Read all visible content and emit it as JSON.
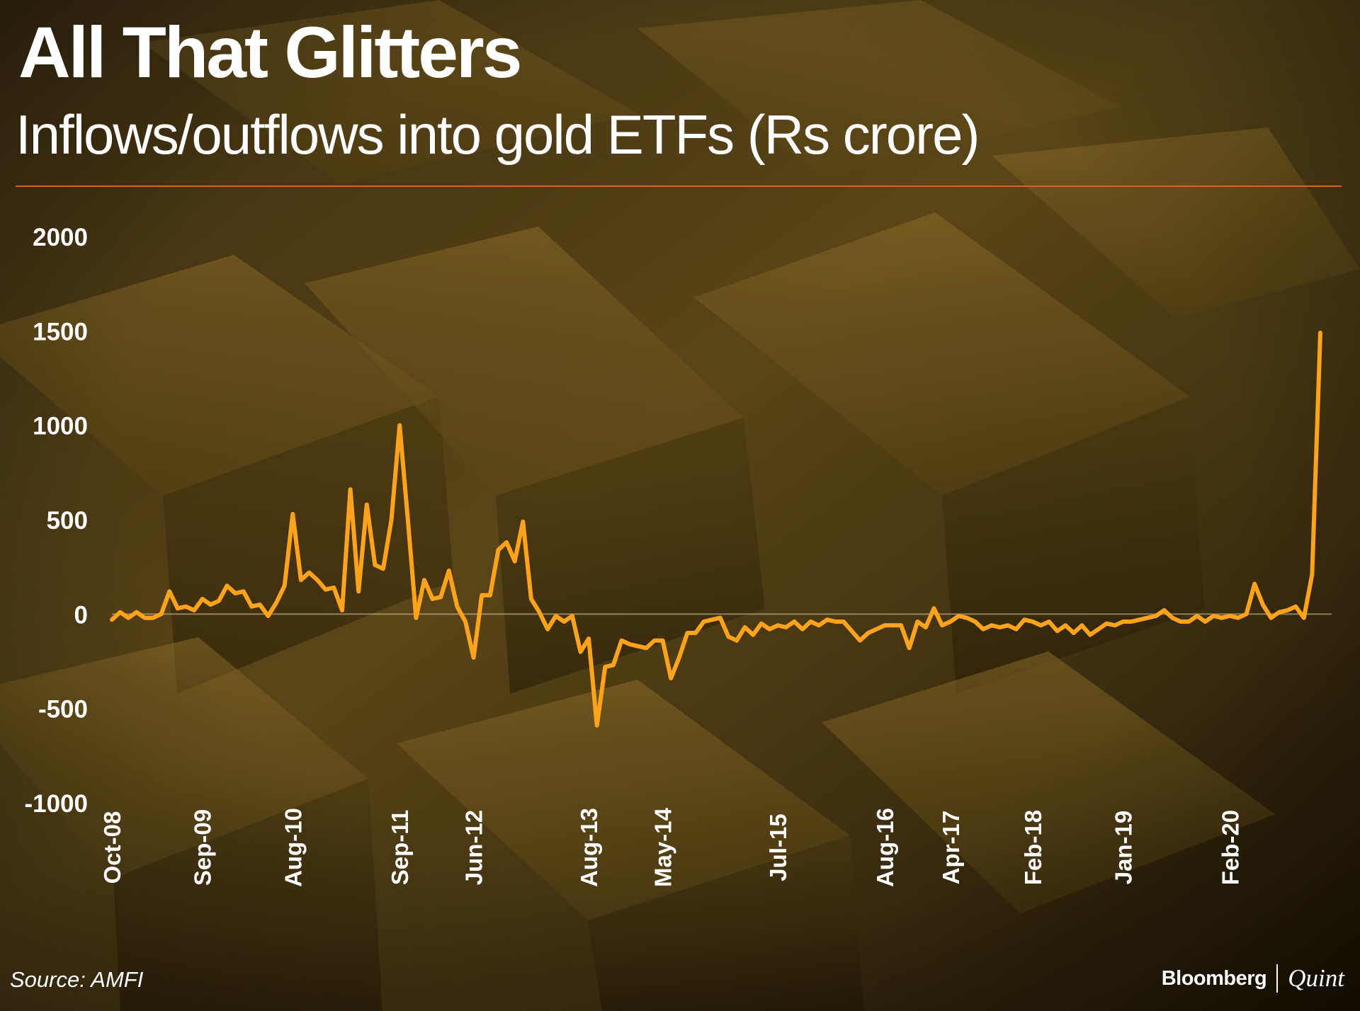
{
  "header": {
    "title": "All That Glitters",
    "subtitle": "Inflows/outflows into gold ETFs (Rs crore)"
  },
  "footer": {
    "source": "Source: AMFI",
    "brand_primary": "Bloomberg",
    "brand_secondary": "Quint"
  },
  "colors": {
    "line": "#ffa31a",
    "rule": "#d0642c",
    "text": "#ffffff",
    "zero_line": "#d8c9a0"
  },
  "chart_data": {
    "type": "line",
    "title": "Inflows/outflows into gold ETFs (Rs crore)",
    "ylabel": "",
    "xlabel": "",
    "ylim": [
      -1000,
      2000
    ],
    "y_ticks": [
      2000,
      1500,
      1000,
      500,
      0,
      -500,
      -1000
    ],
    "x_tick_labels": [
      "Oct-08",
      "Sep-09",
      "Aug-10",
      "Sep-11",
      "Jun-12",
      "Aug-13",
      "May-14",
      "Jul-15",
      "Aug-16",
      "Apr-17",
      "Feb-18",
      "Jan-19",
      "Feb-20"
    ],
    "x_tick_index": [
      0,
      11,
      22,
      35,
      44,
      58,
      67,
      81,
      94,
      102,
      112,
      123,
      136
    ],
    "grid": false,
    "legend": "none",
    "series": [
      {
        "values": [
          -30,
          10,
          -20,
          10,
          -20,
          -20,
          0,
          120,
          30,
          40,
          20,
          80,
          50,
          70,
          150,
          110,
          120,
          40,
          50,
          -10,
          60,
          150,
          530,
          180,
          220,
          180,
          130,
          140,
          20,
          660,
          120,
          580,
          260,
          240,
          500,
          1000,
          500,
          -20,
          180,
          80,
          90,
          230,
          40,
          -40,
          -230,
          100,
          100,
          340,
          380,
          280,
          490,
          80,
          10,
          -80,
          -10,
          -40,
          -10,
          -200,
          -130,
          -590,
          -280,
          -270,
          -140,
          -160,
          -170,
          -180,
          -140,
          -140,
          -340,
          -230,
          -100,
          -100,
          -40,
          -30,
          -20,
          -120,
          -140,
          -70,
          -110,
          -50,
          -80,
          -60,
          -70,
          -40,
          -80,
          -40,
          -60,
          -30,
          -40,
          -40,
          -90,
          -140,
          -100,
          -80,
          -60,
          -60,
          -60,
          -180,
          -40,
          -70,
          30,
          -60,
          -40,
          -10,
          -20,
          -40,
          -80,
          -60,
          -70,
          -60,
          -80,
          -30,
          -40,
          -60,
          -40,
          -90,
          -60,
          -100,
          -60,
          -110,
          -80,
          -50,
          -60,
          -40,
          -40,
          -30,
          -20,
          -10,
          20,
          -20,
          -40,
          -40,
          -10,
          -40,
          -10,
          -20,
          -10,
          -20,
          0,
          160,
          50,
          -20,
          10,
          20,
          40,
          -20,
          210,
          1490
        ]
      }
    ]
  }
}
